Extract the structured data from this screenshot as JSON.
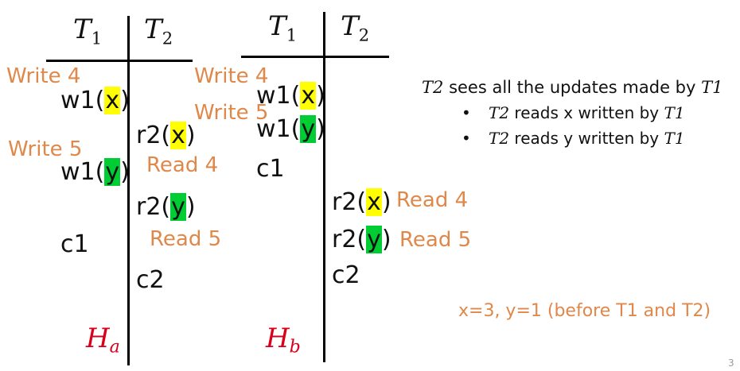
{
  "diagram_a": {
    "header_t1": {
      "letter": "T",
      "sub": "1"
    },
    "header_t2": {
      "letter": "T",
      "sub": "2"
    },
    "history": {
      "letter": "H",
      "sub": "a"
    },
    "ops": {
      "w1x": {
        "op": "w1(",
        "var": "x",
        "close": ")"
      },
      "w1y": {
        "op": "w1(",
        "var": "y",
        "close": ")"
      },
      "r2x": {
        "op": "r2(",
        "var": "x",
        "close": ")"
      },
      "r2y": {
        "op": "r2(",
        "var": "y",
        "close": ")"
      },
      "c1": "c1",
      "c2": "c2"
    },
    "annotations": {
      "write4": "Write 4",
      "write5": "Write 5",
      "read4": "Read 4",
      "read5": "Read 5"
    }
  },
  "diagram_b": {
    "header_t1": {
      "letter": "T",
      "sub": "1"
    },
    "header_t2": {
      "letter": "T",
      "sub": "2"
    },
    "history": {
      "letter": "H",
      "sub": "b"
    },
    "ops": {
      "w1x": {
        "op": "w1(",
        "var": "x",
        "close": ")"
      },
      "w1y": {
        "op": "w1(",
        "var": "y",
        "close": ")"
      },
      "r2x": {
        "op": "r2(",
        "var": "x",
        "close": ")"
      },
      "r2y": {
        "op": "r2(",
        "var": "y",
        "close": ")"
      },
      "c1": "c1",
      "c2": "c2"
    },
    "annotations": {
      "write4": "Write 4",
      "write5": "Write 5",
      "read4": "Read 4",
      "read5": "Read 5"
    }
  },
  "description": {
    "title": {
      "t": "T",
      "sub": "2",
      "text": " sees all the updates made by ",
      "t2": "T",
      "sub2": "1"
    },
    "bullets": [
      {
        "t": "T",
        "sub": "2",
        "text": " reads x written by ",
        "t2": "T",
        "sub2": "1"
      },
      {
        "t": "T",
        "sub": "2",
        "text": " reads y written by ",
        "t2": "T",
        "sub2": "1"
      }
    ],
    "bullet_char": "•"
  },
  "initial_note": "x=3, y=1 (before T1 and T2)",
  "page_number": "3",
  "colors": {
    "highlight_x": "#ffff00",
    "highlight_y": "#00cc33",
    "annotation": "#e0884a",
    "history": "#d9001b"
  }
}
